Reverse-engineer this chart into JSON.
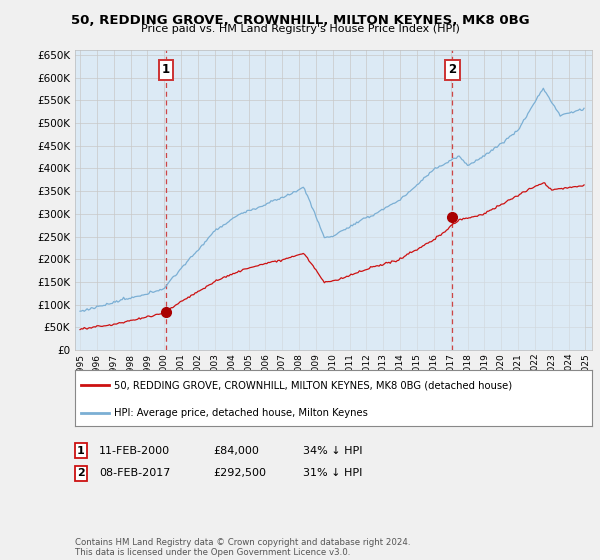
{
  "title": "50, REDDING GROVE, CROWNHILL, MILTON KEYNES, MK8 0BG",
  "subtitle": "Price paid vs. HM Land Registry's House Price Index (HPI)",
  "ylim": [
    0,
    660000
  ],
  "yticks": [
    0,
    50000,
    100000,
    150000,
    200000,
    250000,
    300000,
    350000,
    400000,
    450000,
    500000,
    550000,
    600000,
    650000
  ],
  "ytick_labels": [
    "£0",
    "£50K",
    "£100K",
    "£150K",
    "£200K",
    "£250K",
    "£300K",
    "£350K",
    "£400K",
    "£450K",
    "£500K",
    "£550K",
    "£600K",
    "£650K"
  ],
  "hpi_color": "#7bafd4",
  "hpi_fill_color": "#dceaf5",
  "price_color": "#cc1111",
  "dashed_color": "#cc3333",
  "marker_color": "#aa0000",
  "sale1_date_num": 2000.1,
  "sale1_price": 84000,
  "sale1_label": "1",
  "sale2_date_num": 2017.1,
  "sale2_price": 292500,
  "sale2_label": "2",
  "legend_line1": "50, REDDING GROVE, CROWNHILL, MILTON KEYNES, MK8 0BG (detached house)",
  "legend_line2": "HPI: Average price, detached house, Milton Keynes",
  "note1_label": "1",
  "note1_date": "11-FEB-2000",
  "note1_price": "£84,000",
  "note1_pct": "34% ↓ HPI",
  "note2_label": "2",
  "note2_date": "08-FEB-2017",
  "note2_price": "£292,500",
  "note2_pct": "31% ↓ HPI",
  "footer": "Contains HM Land Registry data © Crown copyright and database right 2024.\nThis data is licensed under the Open Government Licence v3.0.",
  "bg_color": "#f0f0f0",
  "plot_bg_color": "#dceaf5"
}
